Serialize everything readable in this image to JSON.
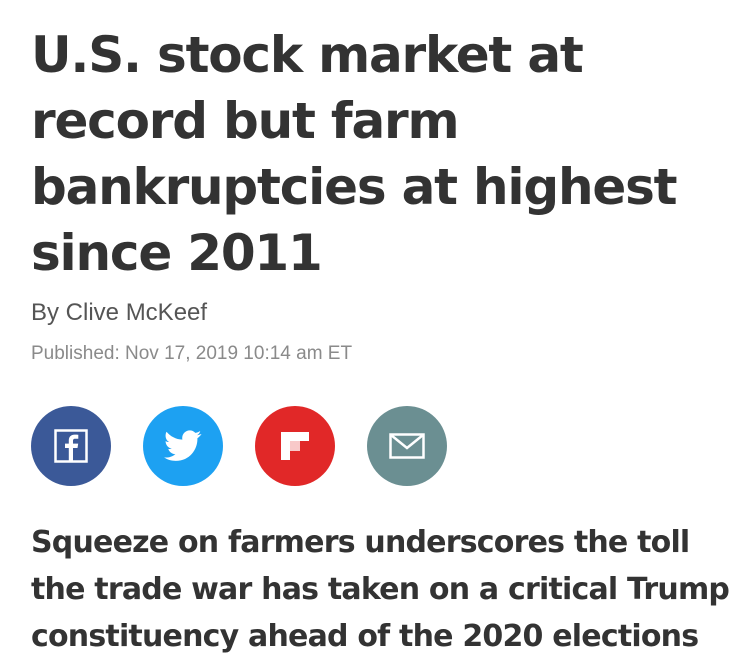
{
  "article": {
    "headline": "U.S. stock market at record but farm bankruptcies at highest since 2011",
    "byline": "By Clive McKeef",
    "published": "Published: Nov 17, 2019 10:14 am ET",
    "dek": "Squeeze on farmers underscores the toll the trade war has taken on a critical Trump constituency ahead of the 2020 elections"
  },
  "share": {
    "buttons": [
      {
        "icon": "facebook-icon",
        "color": "#3b5998"
      },
      {
        "icon": "twitter-icon",
        "color": "#1da1f2"
      },
      {
        "icon": "flipboard-icon",
        "color": "#e12828"
      },
      {
        "icon": "email-icon",
        "color": "#6b8f92"
      }
    ]
  }
}
